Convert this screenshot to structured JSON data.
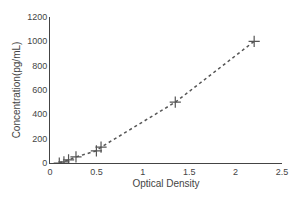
{
  "chart_data": {
    "type": "line",
    "x": [
      0.1,
      0.15,
      0.2,
      0.28,
      0.5,
      0.55,
      1.35,
      2.2
    ],
    "values": [
      0,
      10,
      25,
      50,
      100,
      130,
      500,
      1000
    ],
    "xlabel": "Optical Density",
    "ylabel": "Concentration(pg/mL)",
    "xlim": [
      0,
      2.5
    ],
    "ylim": [
      0,
      1200
    ],
    "xticks": [
      0,
      0.5,
      1,
      1.5,
      2,
      2.5
    ],
    "yticks": [
      0,
      200,
      400,
      600,
      800,
      1000,
      1200
    ],
    "color": "#555555",
    "marker": "plus",
    "line_style": "dotted",
    "grid": false
  }
}
